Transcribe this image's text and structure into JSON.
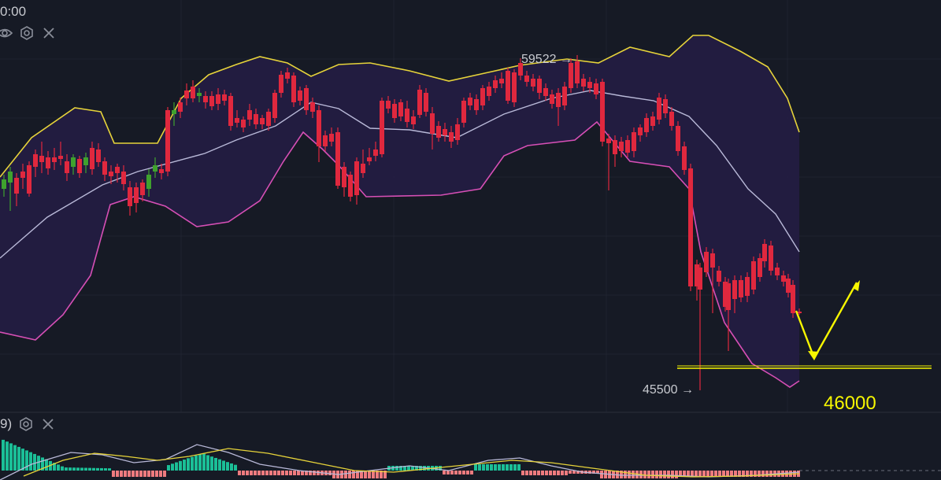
{
  "header": {
    "timestamp": "0:00"
  },
  "subpane": {
    "param_label": "9)"
  },
  "annotations": {
    "high_label": "59522",
    "low_label": "45500",
    "target_label": "46000"
  },
  "icons": [
    "eye-icon",
    "settings-icon",
    "close-icon"
  ],
  "colors": {
    "background": "#161a25",
    "up": "#3fa12e",
    "down": "#e0283e",
    "band_upper": "#e6d33a",
    "band_lower": "#d64fb5",
    "band_middle": "#b9b9d8",
    "band_fill": "#231d44",
    "annotation": "#f7f700",
    "macd_pos": "#1bbf97",
    "macd_neg": "#ef7b7f"
  },
  "chart_data": {
    "type": "candlestick",
    "indicators": [
      "Bollinger Bands",
      "MACD"
    ],
    "price_high": 59522,
    "price_low": 45500,
    "support_level": 46000,
    "grid": true
  }
}
